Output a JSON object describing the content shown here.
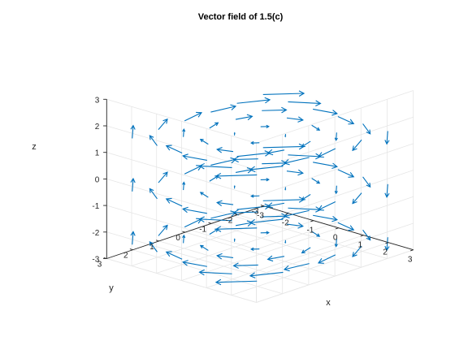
{
  "chart_data": {
    "type": "quiver3d",
    "title": "Vector field of 1.5(c)",
    "xlabel": "x",
    "ylabel": "y",
    "zlabel": "z",
    "xlim": [
      -3,
      3
    ],
    "ylim": [
      -3,
      3
    ],
    "zlim": [
      -3,
      3
    ],
    "xticks": [
      "-3",
      "-2",
      "-1",
      "0",
      "1",
      "2",
      "3"
    ],
    "yticks": [
      "-3",
      "-2",
      "-1",
      "0",
      "1",
      "2",
      "3"
    ],
    "zticks": [
      "-3",
      "-2",
      "-1",
      "0",
      "1",
      "2",
      "3"
    ],
    "grid": true,
    "view": "isometric-3d (az -37.5, el 30)",
    "field": {
      "components": [
        "-y",
        "x",
        "0"
      ],
      "grid_x": [
        -2.5,
        -1.5,
        -0.5,
        0.5,
        1.5,
        2.5
      ],
      "grid_y": [
        -2.5,
        -1.5,
        -0.5,
        0.5,
        1.5,
        2.5
      ],
      "grid_z": [
        -2.5,
        -0.5,
        1.5
      ]
    },
    "colors": {
      "arrows": "#0072BD",
      "axes": "#262626",
      "grid": "#e6e6e6",
      "background": "#ffffff"
    }
  }
}
